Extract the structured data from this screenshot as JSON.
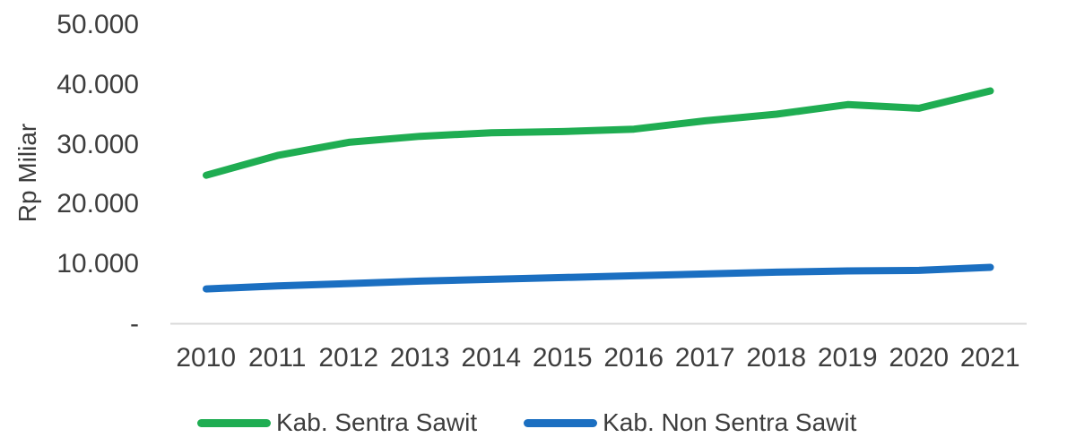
{
  "chart_data": {
    "type": "line",
    "title": "",
    "xlabel": "",
    "ylabel": "Rp Miliar",
    "categories": [
      "2010",
      "2011",
      "2012",
      "2013",
      "2014",
      "2015",
      "2016",
      "2017",
      "2018",
      "2019",
      "2020",
      "2021"
    ],
    "y_tick_labels": [
      "50.000",
      "40.000",
      "30.000",
      "20.000",
      "10.000",
      "-"
    ],
    "ylim": [
      0,
      50000
    ],
    "y_step": 10000,
    "grid": "off",
    "legend_position": "bottom",
    "series": [
      {
        "name": "Kab. Sentra Sawit",
        "color": "#1fad52",
        "values": [
          24900,
          28200,
          30400,
          31400,
          32000,
          32200,
          32600,
          34000,
          35100,
          36700,
          36100,
          39000
        ]
      },
      {
        "name": "Kab. Non Sentra Sawit",
        "color": "#1b6fc1",
        "values": [
          5900,
          6400,
          6800,
          7200,
          7500,
          7800,
          8100,
          8400,
          8700,
          8900,
          9000,
          9500
        ]
      }
    ]
  },
  "colors": {
    "axis_line": "#d9d9d9",
    "text": "#3d3d3d"
  }
}
